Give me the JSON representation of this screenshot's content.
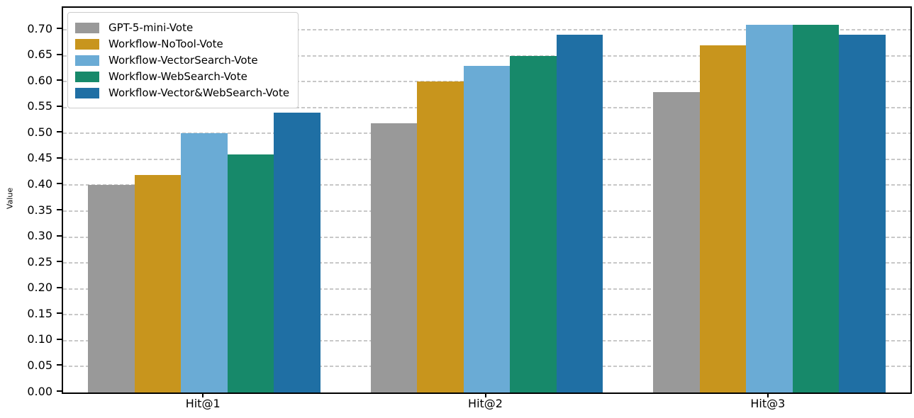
{
  "chart_data": {
    "type": "bar",
    "title": "",
    "xlabel": "",
    "ylabel": "Value",
    "categories": [
      "Hit@1",
      "Hit@2",
      "Hit@3"
    ],
    "series": [
      {
        "name": "GPT-5-mini-Vote",
        "color": "#999999",
        "values": [
          0.4,
          0.52,
          0.58
        ]
      },
      {
        "name": "Workflow-NoTool-Vote",
        "color": "#c8951d",
        "values": [
          0.42,
          0.6,
          0.67
        ]
      },
      {
        "name": "Workflow-VectorSearch-Vote",
        "color": "#6aabd5",
        "values": [
          0.5,
          0.63,
          0.71
        ]
      },
      {
        "name": "Workflow-WebSearch-Vote",
        "color": "#17896a",
        "values": [
          0.46,
          0.65,
          0.71
        ]
      },
      {
        "name": "Workflow-Vector&WebSearch-Vote",
        "color": "#1f6fa4",
        "values": [
          0.54,
          0.69,
          0.69
        ]
      }
    ],
    "ylim": [
      0.0,
      0.7425
    ],
    "yticks": [
      0.0,
      0.05,
      0.1,
      0.15,
      0.2,
      0.25,
      0.3,
      0.35,
      0.4,
      0.45,
      0.5,
      0.55,
      0.6,
      0.65,
      0.7
    ],
    "ytick_format": "2-decimals",
    "grid": {
      "axis": "y",
      "style": "dashed",
      "color": "#c8c8c8"
    },
    "legend": {
      "position": "upper-left"
    },
    "spine_color": "#000000",
    "background": "#ffffff"
  }
}
